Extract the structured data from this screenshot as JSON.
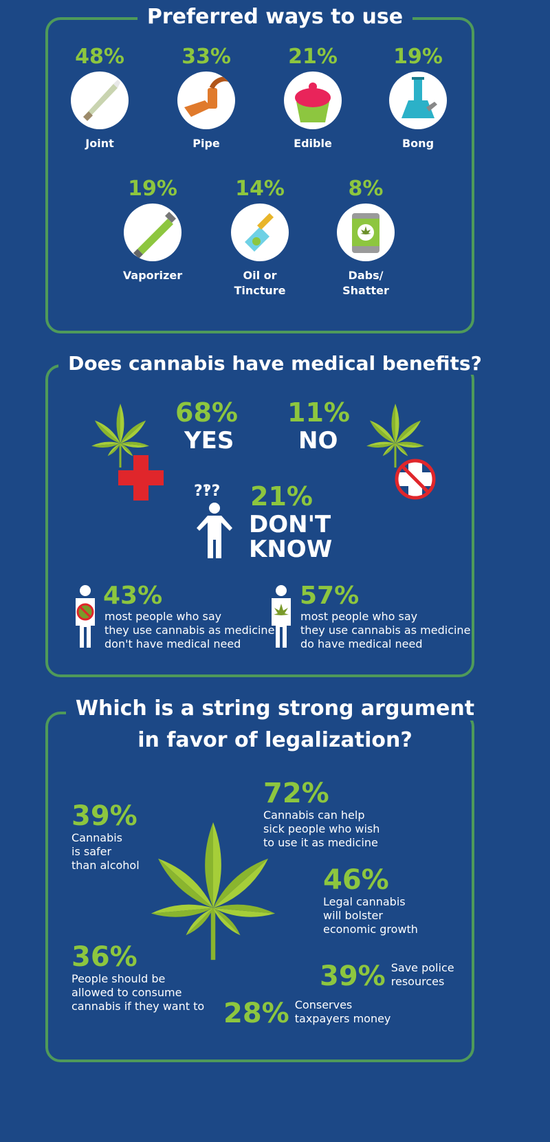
{
  "colors": {
    "background": "#1c4886",
    "accent_green": "#8dc63f",
    "border_green": "#4f9a5a",
    "red": "#e0262b"
  },
  "section1": {
    "title": "Preferred ways to use",
    "items": [
      {
        "label": "Joint",
        "percent": "48%",
        "icon": "joint-icon"
      },
      {
        "label": "Pipe",
        "percent": "33%",
        "icon": "pipe-icon"
      },
      {
        "label": "Edible",
        "percent": "21%",
        "icon": "cupcake-icon"
      },
      {
        "label": "Bong",
        "percent": "19%",
        "icon": "bong-icon"
      },
      {
        "label": "Vaporizer",
        "percent": "19%",
        "icon": "vaporizer-icon"
      },
      {
        "label": "Oil or",
        "label2": "Tincture",
        "percent": "14%",
        "icon": "dropper-bottle-icon"
      },
      {
        "label": "Dabs/",
        "label2": "Shatter",
        "percent": "8%",
        "icon": "can-icon"
      }
    ]
  },
  "section2": {
    "title": "Does cannabis have medical benefits?",
    "yes": {
      "percent": "68%",
      "label": "YES"
    },
    "no": {
      "percent": "11%",
      "label": "NO"
    },
    "dont_know": {
      "percent": "21%",
      "label1": "DON'T",
      "label2": "KNOW",
      "qmarks": "?‽?"
    },
    "no_need": {
      "percent": "43%",
      "lines": [
        "most people who say",
        "they use cannabis as medicine",
        "don't have medical need"
      ]
    },
    "need": {
      "percent": "57%",
      "lines": [
        "most people who say",
        "they use cannabis as medicine",
        "do have medical need"
      ]
    }
  },
  "section3": {
    "title1": "Which is a string strong argument",
    "title2": "in favor of legalization?",
    "args": [
      {
        "percent": "72%",
        "lines": [
          "Cannabis can help",
          "sick people who wish",
          "to use it as medicine"
        ]
      },
      {
        "percent": "39%",
        "lines": [
          "Cannabis",
          "is safer",
          "than alcohol"
        ]
      },
      {
        "percent": "46%",
        "lines": [
          "Legal cannabis",
          "will bolster",
          "economic growth"
        ]
      },
      {
        "percent": "36%",
        "lines": [
          "People should be",
          "allowed to consume",
          "cannabis if they want to"
        ]
      },
      {
        "percent": "39%",
        "lines": [
          "Save police",
          "resources"
        ]
      },
      {
        "percent": "28%",
        "lines": [
          "Conserves",
          "taxpayers money"
        ]
      }
    ]
  }
}
